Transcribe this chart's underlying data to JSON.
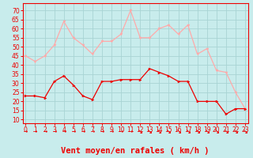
{
  "hours": [
    0,
    1,
    2,
    3,
    4,
    5,
    6,
    7,
    8,
    9,
    10,
    11,
    12,
    13,
    14,
    15,
    16,
    17,
    18,
    19,
    20,
    21,
    22,
    23
  ],
  "wind_mean": [
    23,
    23,
    22,
    31,
    34,
    29,
    23,
    21,
    31,
    31,
    32,
    32,
    32,
    38,
    36,
    34,
    31,
    31,
    20,
    20,
    20,
    13,
    16,
    16
  ],
  "wind_gusts": [
    45,
    42,
    45,
    51,
    64,
    55,
    51,
    46,
    53,
    53,
    57,
    70,
    55,
    55,
    60,
    62,
    57,
    62,
    46,
    49,
    37,
    36,
    25,
    16
  ],
  "bg_color": "#c8ecec",
  "grid_color": "#a8d4d4",
  "mean_color": "#ee0000",
  "gust_color": "#ffaaaa",
  "xlabel": "Vent moyen/en rafales ( km/h )",
  "ylabel_ticks": [
    10,
    15,
    20,
    25,
    30,
    35,
    40,
    45,
    50,
    55,
    60,
    65,
    70
  ],
  "ylim": [
    8,
    74
  ],
  "xlim": [
    -0.3,
    23.3
  ],
  "tick_fontsize": 5.5,
  "label_fontsize": 7.5
}
